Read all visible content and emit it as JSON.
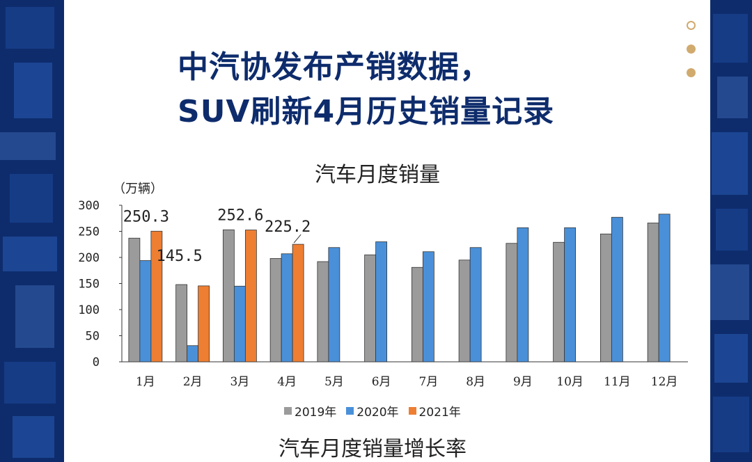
{
  "header": {
    "headline_line1": "中汽协发布产销数据，",
    "headline_line2": "SUV刷新4月历史销量记录"
  },
  "chart_data": {
    "type": "bar",
    "title": "汽车月度销量",
    "unit_label": "（万辆）",
    "categories": [
      "1月",
      "2月",
      "3月",
      "4月",
      "5月",
      "6月",
      "7月",
      "8月",
      "9月",
      "10月",
      "11月",
      "12月"
    ],
    "ylim": [
      0,
      300
    ],
    "yticks": [
      0,
      50,
      100,
      150,
      200,
      250,
      300
    ],
    "series": [
      {
        "name": "2019年",
        "color": "#9b9b9b",
        "values": [
          237,
          148,
          253,
          198,
          192,
          205,
          181,
          195,
          227,
          229,
          245,
          266
        ]
      },
      {
        "name": "2020年",
        "color": "#4a90d9",
        "values": [
          194,
          31,
          145,
          207,
          219,
          230,
          211,
          219,
          257,
          257,
          277,
          283
        ]
      },
      {
        "name": "2021年",
        "color": "#ee7e32",
        "values": [
          250.3,
          145.5,
          252.6,
          225.2,
          null,
          null,
          null,
          null,
          null,
          null,
          null,
          null
        ]
      }
    ],
    "data_labels": [
      {
        "series": 2,
        "index": 0,
        "text": "250.3"
      },
      {
        "series": 2,
        "index": 1,
        "text": "145.5"
      },
      {
        "series": 2,
        "index": 2,
        "text": "252.6"
      },
      {
        "series": 2,
        "index": 3,
        "text": "225.2"
      }
    ]
  },
  "footer_title": "汽车月度销量增长率"
}
